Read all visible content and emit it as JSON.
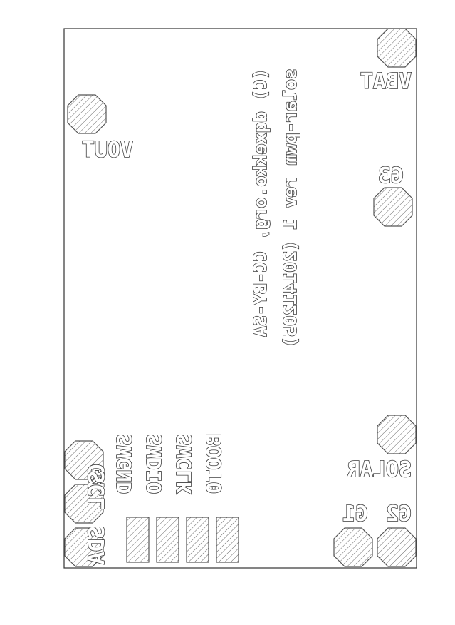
{
  "board": {
    "outline_color": "#333333",
    "hatch_color": "#666666"
  },
  "labels": {
    "vbat": "VBAT",
    "vout": "VOUT",
    "g3": "G3",
    "solar": "SOLAR",
    "g2": "G2",
    "g1": "G1",
    "g4": "G4",
    "sda": "SDA",
    "scl": "SCL",
    "swgnd": "SWGND",
    "swdio": "SWDIO",
    "swclk": "SWCLK",
    "boot0": "BOOT0",
    "copyright": "(C) dqxekko.org, CC-BY-SA",
    "rev": "solar-pwm rev 1 (20141205)"
  }
}
